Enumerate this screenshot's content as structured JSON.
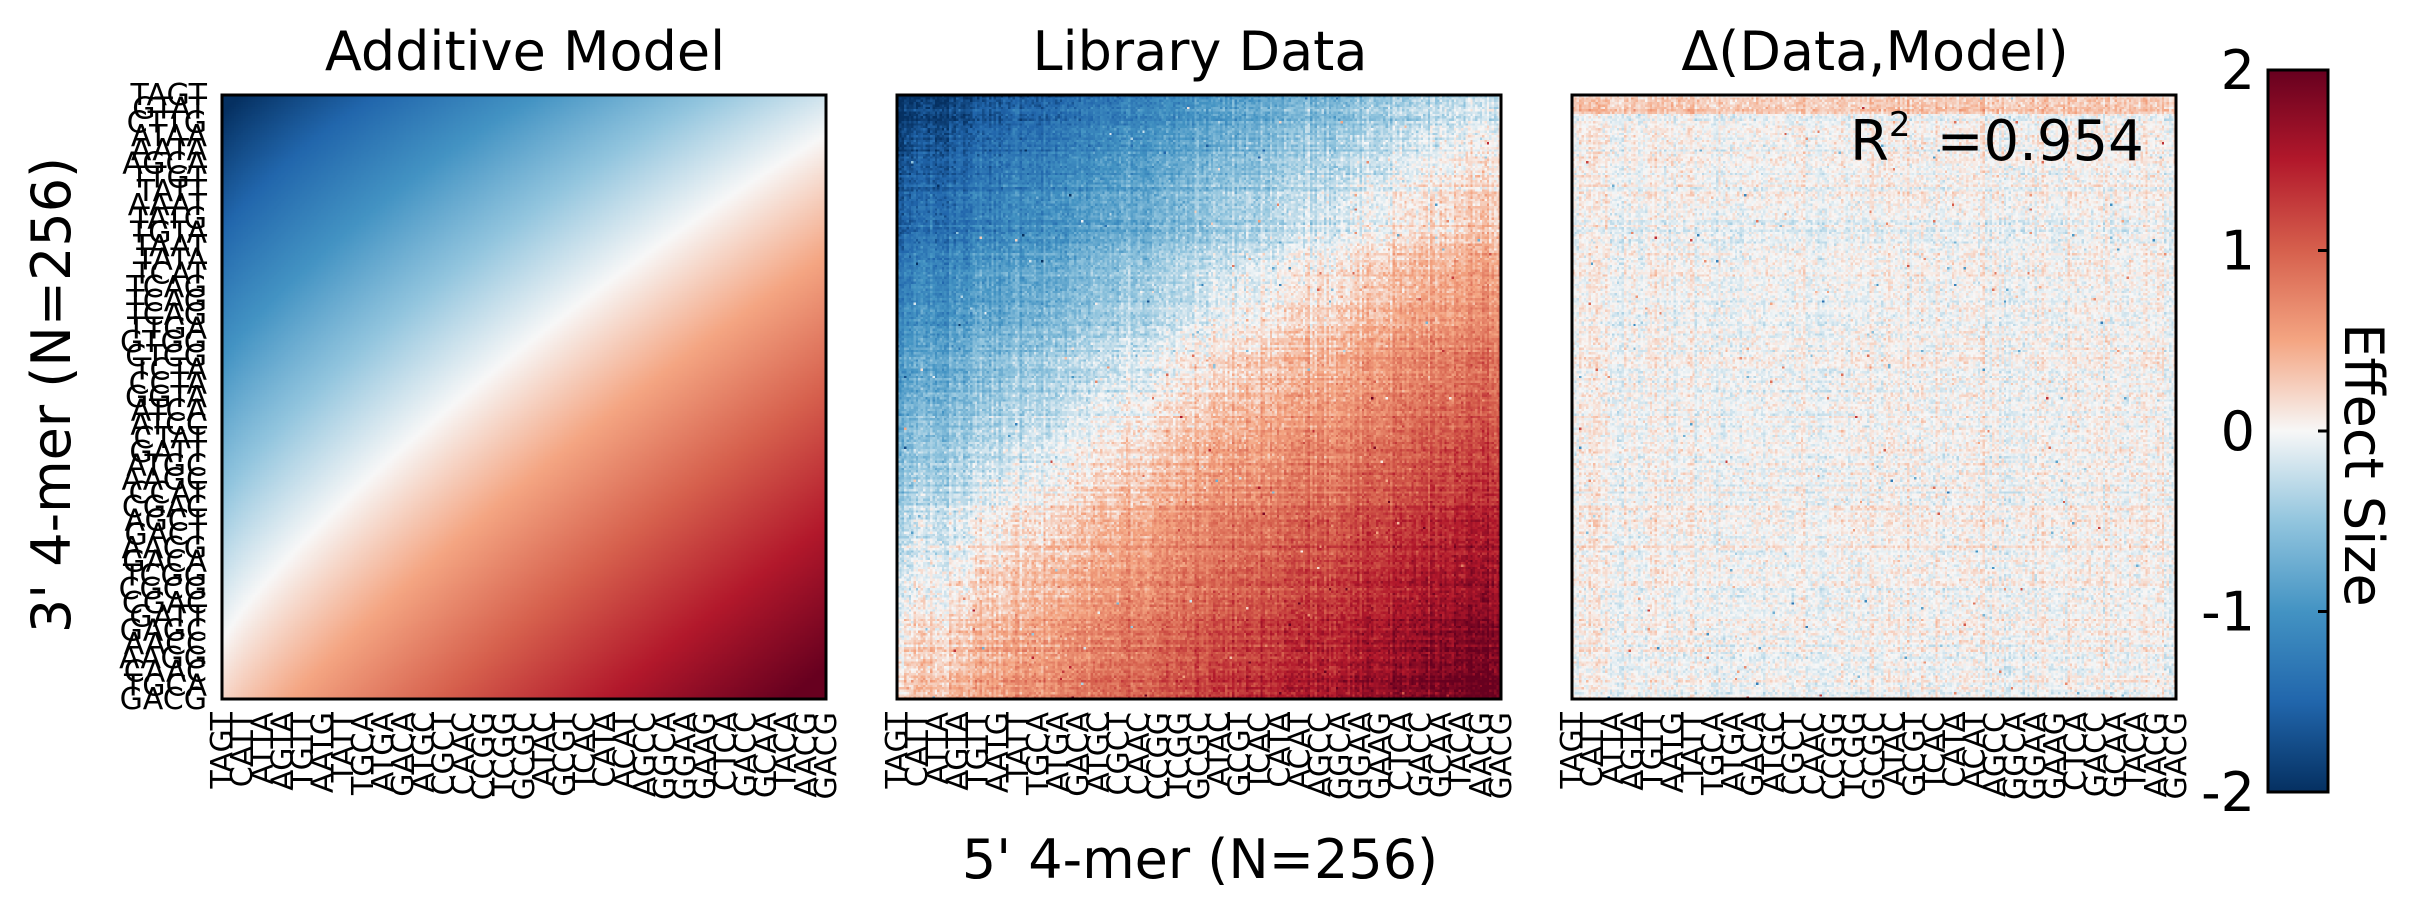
{
  "chart_data": {
    "type": "heatmap",
    "panels": [
      {
        "title": "Additive Model",
        "kind": "model",
        "show_y_ticks": true
      },
      {
        "title": "Library Data",
        "kind": "data",
        "show_y_ticks": false
      },
      {
        "title": "Δ(Data,Model)",
        "kind": "delta",
        "show_y_ticks": false,
        "annotation": "R² =0.954",
        "annotation_base": "R",
        "annotation_sup": "2",
        "annotation_value": "=0.954"
      }
    ],
    "xlabel": "5' 4-mer (N=256)",
    "ylabel": "3' 4-mer (N=256)",
    "grid_size": 256,
    "x_tick_labels": [
      "TAGT",
      "CATT",
      "ATTA",
      "AGTA",
      "TGTT",
      "AATG",
      "TATT",
      "TGCA",
      "ATGA",
      "GACA",
      "ATGC",
      "CGCT",
      "CAAC",
      "CCGG",
      "TCGG",
      "GCGC",
      "ATAC",
      "GCGT",
      "TCAC",
      "CATA",
      "ACAT",
      "AGCC",
      "GGCA",
      "GGAA",
      "GAAG",
      "CTCA",
      "GACC",
      "GCAA",
      "TACA",
      "AACG",
      "GACG"
    ],
    "y_tick_labels": [
      "TAGT",
      "GTAT",
      "CTTG",
      "ATAA",
      "AATA",
      "AGCA",
      "TTGT",
      "TATT",
      "AAAT",
      "TATG",
      "TGTA",
      "TAAT",
      "TATA",
      "TCAT",
      "TCAG",
      "TCAG",
      "TCAG",
      "TTGA",
      "GTGG",
      "CTCG",
      "TCTA",
      "CCTA",
      "GGTA",
      "ATCA",
      "ATCC",
      "CTAT",
      "GATT",
      "ATGC",
      "AAGC",
      "CCAT",
      "CGAC",
      "AGCT",
      "GACT",
      "AACG",
      "GACA",
      "TCGG",
      "CGCG",
      "CGAC",
      "GATT",
      "GAGC",
      "AACC",
      "AAGG",
      "CAAC",
      "TGCA",
      "GACG"
    ],
    "colorbar": {
      "label": "Effect Size",
      "range": [
        -2,
        2
      ],
      "ticks": [
        "2",
        "1",
        "0",
        "-1",
        "-2"
      ],
      "colormap": "RdBu_r"
    },
    "value_range": [
      -2,
      2
    ]
  }
}
